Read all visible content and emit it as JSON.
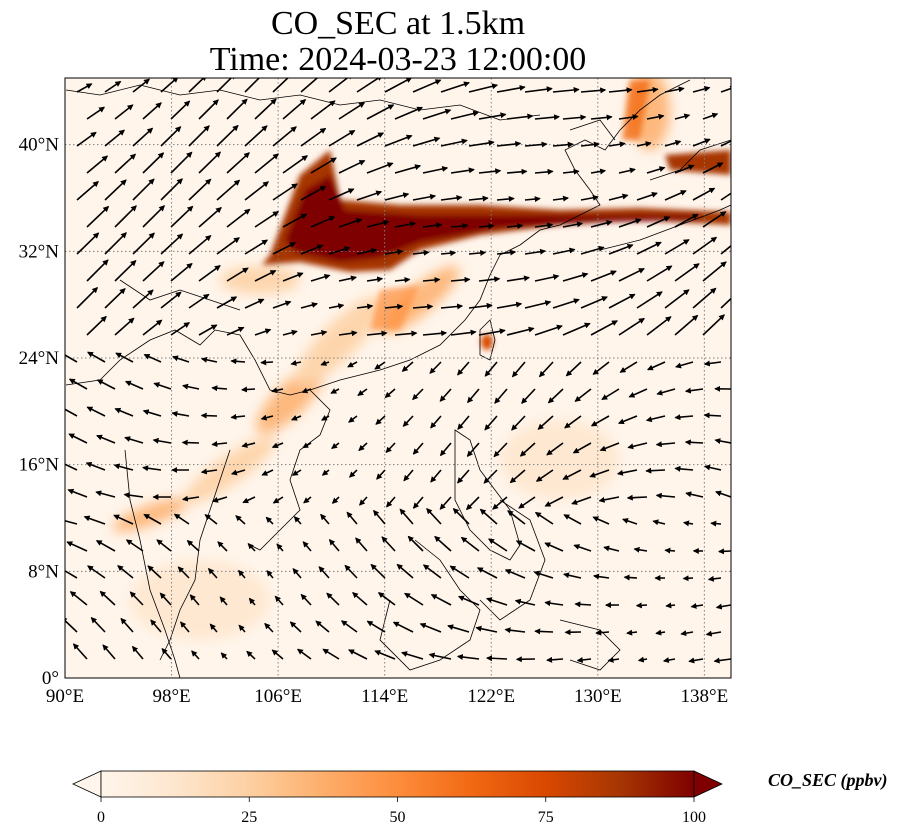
{
  "title": {
    "line1": "CO_SEC at 1.5km",
    "line2": "Time: 2024-03-23 12:00:00"
  },
  "map": {
    "lon_range": [
      90,
      140
    ],
    "lat_range": [
      0,
      45
    ],
    "x_ticks": [
      "90°E",
      "98°E",
      "106°E",
      "114°E",
      "122°E",
      "130°E",
      "138°E"
    ],
    "x_tick_values": [
      90,
      98,
      106,
      114,
      122,
      130,
      138
    ],
    "y_ticks": [
      "0°",
      "8°N",
      "16°N",
      "24°N",
      "32°N",
      "40°N"
    ],
    "y_tick_values": [
      0,
      8,
      16,
      24,
      32,
      40
    ],
    "grid": "dotted",
    "plume_color_dark": "#7f0000",
    "plume_color_mid": "#d7301f",
    "plume_color_light": "#fdbb84",
    "background_color": "#fff5eb"
  },
  "colorbar": {
    "label": "CO_SEC (ppbv)",
    "ticks": [
      "0",
      "25",
      "50",
      "75",
      "100"
    ],
    "tick_values": [
      0,
      25,
      50,
      75,
      100
    ],
    "colors": [
      "#fff5eb",
      "#fee6ce",
      "#fdd0a2",
      "#fdae6b",
      "#fd8d3c",
      "#f16913",
      "#d94801",
      "#a63603",
      "#7f0000"
    ],
    "extend": "both"
  }
}
